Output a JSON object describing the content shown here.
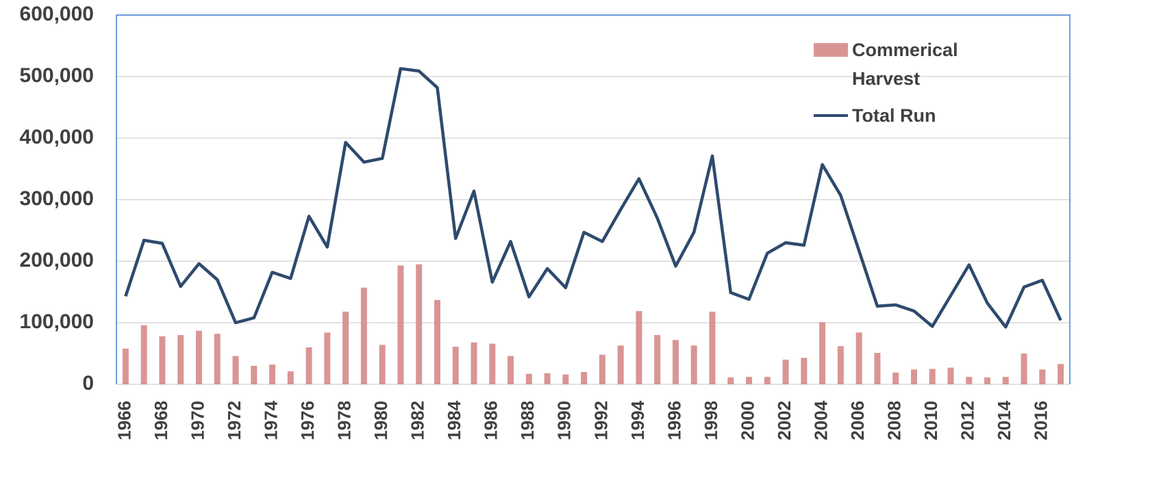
{
  "chart_data": {
    "type": "combo",
    "categories": [
      "1966",
      null,
      "1968",
      null,
      "1970",
      null,
      "1972",
      null,
      "1974",
      null,
      "1976",
      null,
      "1978",
      null,
      "1980",
      null,
      "1982",
      null,
      "1984",
      null,
      "1986",
      null,
      "1988",
      null,
      "1990",
      null,
      "1992",
      null,
      "1994",
      null,
      "1996",
      null,
      "1998",
      null,
      "2000",
      null,
      "2002",
      null,
      "2004",
      null,
      "2006",
      null,
      "2008",
      null,
      "2010",
      null,
      "2012",
      null,
      "2014",
      null,
      "2016",
      null
    ],
    "series": [
      {
        "name": "Commerical Harvest",
        "type": "bar",
        "color": "#d99594",
        "values": [
          58000,
          96000,
          78000,
          80000,
          87000,
          82000,
          46000,
          30000,
          32000,
          21000,
          60000,
          84000,
          118000,
          157000,
          64000,
          193000,
          195000,
          137000,
          61000,
          68000,
          66000,
          46000,
          17000,
          18000,
          16000,
          20000,
          48000,
          63000,
          119000,
          80000,
          72000,
          63000,
          118000,
          11000,
          12000,
          12000,
          40000,
          43000,
          101000,
          62000,
          84000,
          51000,
          19000,
          24000,
          25000,
          27000,
          12000,
          11000,
          12000,
          50000,
          24000,
          33000
        ]
      },
      {
        "name": "Total Run",
        "type": "line",
        "color": "#2e4a6e",
        "values": [
          143000,
          234000,
          229000,
          159000,
          196000,
          170000,
          100000,
          108000,
          182000,
          172000,
          273000,
          223000,
          393000,
          361000,
          367000,
          513000,
          509000,
          482000,
          237000,
          314000,
          166000,
          232000,
          142000,
          188000,
          157000,
          247000,
          232000,
          284000,
          334000,
          270000,
          192000,
          247000,
          371000,
          149000,
          138000,
          213000,
          230000,
          226000,
          357000,
          307000,
          217000,
          127000,
          129000,
          119000,
          94000,
          144000,
          194000,
          132000,
          93000,
          158000,
          169000,
          104000
        ]
      }
    ],
    "ylim": [
      0,
      600000
    ],
    "yticks": [
      0,
      {
        "value": 100000,
        "label": "100,000"
      },
      {
        "value": 200000,
        "label": "200,000"
      },
      {
        "value": 300000,
        "label": "300,000"
      },
      {
        "value": 400000,
        "label": "400,000"
      },
      {
        "value": 500000,
        "label": "500,000"
      },
      {
        "value": 600000,
        "label": "600,000"
      }
    ],
    "grid": true
  }
}
